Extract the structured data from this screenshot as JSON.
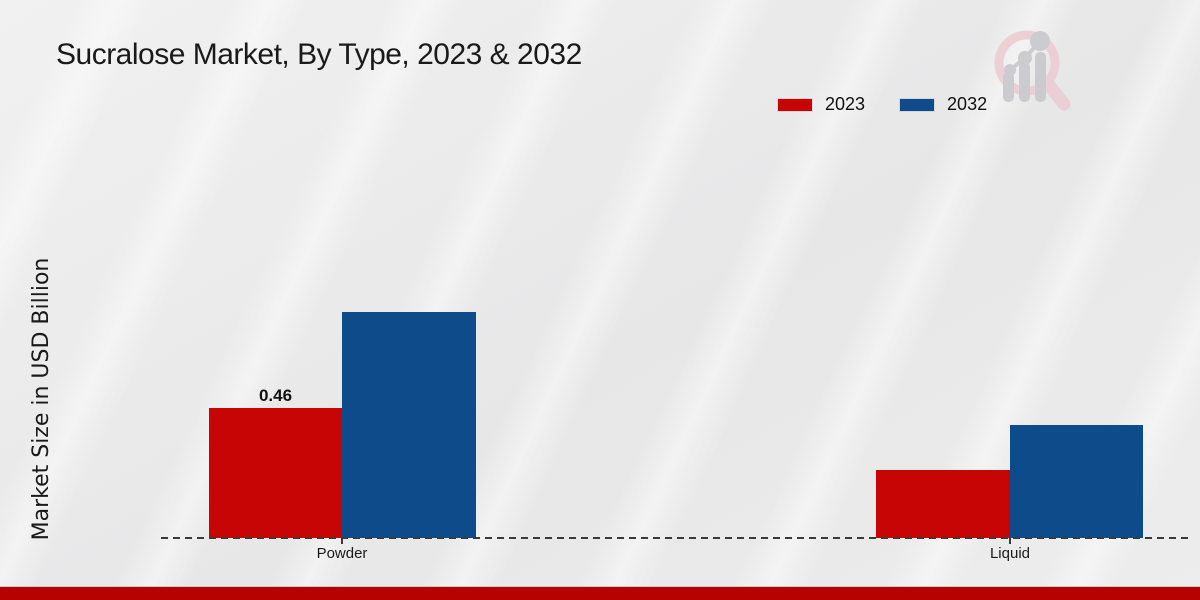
{
  "header": {
    "title": "Sucralose Market, By Type, 2023 & 2032"
  },
  "colors": {
    "series_2023": "#c80505",
    "series_2032": "#0d4b8a",
    "footer_bar": "#b70202",
    "background": "#eaeaea",
    "axis_line": "#3a3a3a",
    "logo_pink": "#eccdd2",
    "logo_gray": "#c8c8cd"
  },
  "chart_data": {
    "type": "bar",
    "title": "Sucralose Market, By Type, 2023 & 2032",
    "categories": [
      "Powder",
      "Liquid"
    ],
    "series": [
      {
        "name": "2023",
        "color": "#c80505",
        "values": [
          0.46,
          0.24
        ]
      },
      {
        "name": "2032",
        "color": "#0d4b8a",
        "values": [
          0.8,
          0.4
        ]
      }
    ],
    "data_labels": [
      {
        "category": "Powder",
        "series": "2023",
        "text": "0.46"
      }
    ],
    "xlabel": "",
    "ylabel": "Market Size in USD Billion",
    "ylim": [
      0,
      0.95
    ],
    "grid": false,
    "legend_position": "top-right",
    "baseline_style": "dashed"
  },
  "watermark": {
    "icon": "magnifier-bar-chart-logo"
  }
}
